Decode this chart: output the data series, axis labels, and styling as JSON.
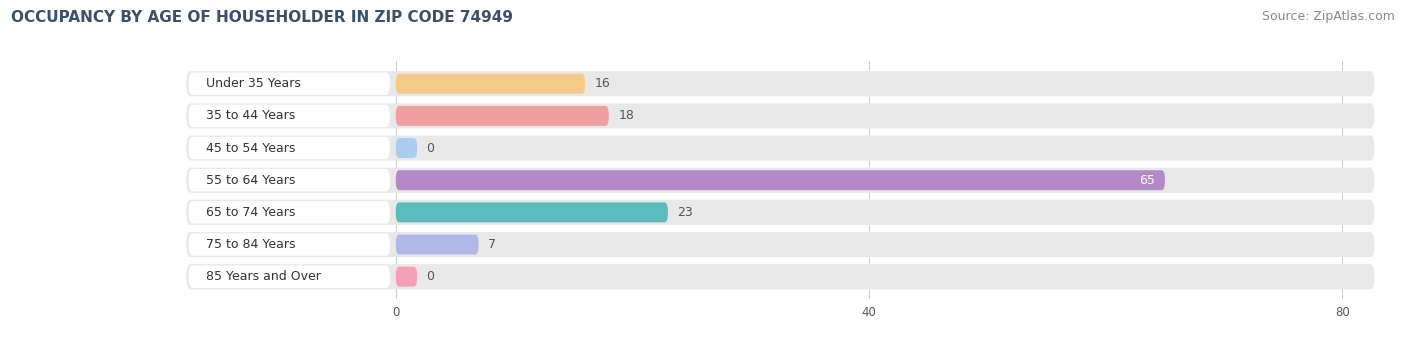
{
  "title": "OCCUPANCY BY AGE OF HOUSEHOLDER IN ZIP CODE 74949",
  "source": "Source: ZipAtlas.com",
  "categories": [
    "Under 35 Years",
    "35 to 44 Years",
    "45 to 54 Years",
    "55 to 64 Years",
    "65 to 74 Years",
    "75 to 84 Years",
    "85 Years and Over"
  ],
  "values": [
    16,
    18,
    0,
    65,
    23,
    7,
    0
  ],
  "bar_colors": [
    "#f5c98a",
    "#f0a0a0",
    "#aaccf0",
    "#b489c8",
    "#5bbcbe",
    "#b0b8e8",
    "#f5a0b8"
  ],
  "row_bg_color": "#e8e8e8",
  "label_bg_color": "#ffffff",
  "label_color": "#333333",
  "label_color_inside": "#ffffff",
  "value_color": "#555555",
  "value_color_inside": "#ffffff",
  "xlim_data": [
    0,
    80
  ],
  "xticks": [
    0,
    40,
    80
  ],
  "title_fontsize": 11,
  "source_fontsize": 9,
  "bar_label_fontsize": 9,
  "category_fontsize": 9,
  "background_color": "#ffffff",
  "title_color": "#3a5068",
  "source_color": "#888888"
}
